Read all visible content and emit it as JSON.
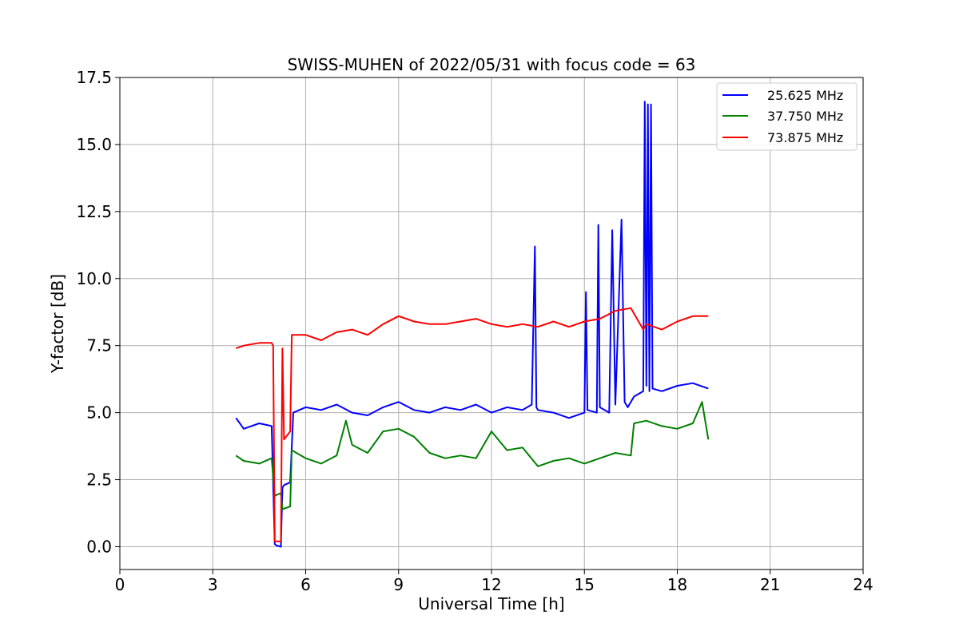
{
  "chart_data": {
    "type": "line",
    "title": "SWISS-MUHEN of 2022/05/31 with focus code = 63",
    "xlabel": "Universal Time [h]",
    "ylabel": "Y-factor [dB]",
    "xlim": [
      0,
      24
    ],
    "ylim": [
      -0.85,
      17.5
    ],
    "xticks": [
      0,
      3,
      6,
      9,
      12,
      15,
      18,
      21,
      24
    ],
    "xtick_labels": [
      "0",
      "3",
      "6",
      "9",
      "12",
      "15",
      "18",
      "21",
      "24"
    ],
    "yticks": [
      0.0,
      2.5,
      5.0,
      7.5,
      10.0,
      12.5,
      15.0,
      17.5
    ],
    "ytick_labels": [
      "0.0",
      "2.5",
      "5.0",
      "7.5",
      "10.0",
      "12.5",
      "15.0",
      "17.5"
    ],
    "grid": true,
    "legend_position": "top-right",
    "series": [
      {
        "name": "25.625 MHz",
        "color": "#0000ff",
        "x": [
          3.75,
          4.0,
          4.5,
          4.9,
          5.0,
          5.05,
          5.2,
          5.25,
          5.3,
          5.5,
          5.6,
          6.0,
          6.5,
          7.0,
          7.5,
          8.0,
          8.5,
          9.0,
          9.5,
          10.0,
          10.5,
          11.0,
          11.5,
          12.0,
          12.5,
          13.0,
          13.3,
          13.4,
          13.45,
          13.5,
          14.0,
          14.5,
          15.0,
          15.05,
          15.1,
          15.4,
          15.45,
          15.5,
          15.8,
          15.9,
          16.0,
          16.2,
          16.3,
          16.4,
          16.6,
          16.9,
          16.95,
          17.0,
          17.05,
          17.1,
          17.15,
          17.2,
          17.5,
          18.0,
          18.5,
          19.0
        ],
        "y": [
          4.8,
          4.4,
          4.6,
          4.5,
          0.1,
          0.05,
          0.0,
          2.2,
          2.3,
          2.4,
          5.0,
          5.2,
          5.1,
          5.3,
          5.0,
          4.9,
          5.2,
          5.4,
          5.1,
          5.0,
          5.2,
          5.1,
          5.3,
          5.0,
          5.2,
          5.1,
          5.3,
          11.2,
          5.2,
          5.1,
          5.0,
          4.8,
          5.0,
          9.5,
          5.1,
          5.0,
          12.0,
          5.2,
          5.0,
          11.8,
          5.3,
          12.2,
          5.4,
          5.2,
          5.6,
          5.8,
          16.6,
          6.0,
          16.5,
          5.8,
          16.5,
          5.9,
          5.8,
          6.0,
          6.1,
          5.9
        ]
      },
      {
        "name": "37.750 MHz",
        "color": "#008000",
        "x": [
          3.75,
          4.0,
          4.5,
          4.9,
          5.0,
          5.2,
          5.25,
          5.5,
          5.55,
          6.0,
          6.5,
          7.0,
          7.3,
          7.5,
          8.0,
          8.5,
          9.0,
          9.5,
          10.0,
          10.5,
          11.0,
          11.5,
          12.0,
          12.5,
          13.0,
          13.5,
          14.0,
          14.5,
          15.0,
          15.5,
          16.0,
          16.5,
          16.6,
          17.0,
          17.5,
          18.0,
          18.5,
          18.8,
          19.0
        ],
        "y": [
          3.4,
          3.2,
          3.1,
          3.3,
          1.9,
          2.0,
          1.4,
          1.5,
          3.6,
          3.3,
          3.1,
          3.4,
          4.7,
          3.8,
          3.5,
          4.3,
          4.4,
          4.1,
          3.5,
          3.3,
          3.4,
          3.3,
          4.3,
          3.6,
          3.7,
          3.0,
          3.2,
          3.3,
          3.1,
          3.3,
          3.5,
          3.4,
          4.6,
          4.7,
          4.5,
          4.4,
          4.6,
          5.4,
          4.0
        ]
      },
      {
        "name": "73.875 MHz",
        "color": "#ff0000",
        "x": [
          3.75,
          4.0,
          4.5,
          4.9,
          4.95,
          5.0,
          5.2,
          5.25,
          5.3,
          5.5,
          5.55,
          6.0,
          6.5,
          7.0,
          7.5,
          8.0,
          8.5,
          9.0,
          9.5,
          10.0,
          10.5,
          11.0,
          11.5,
          12.0,
          12.5,
          13.0,
          13.5,
          14.0,
          14.5,
          15.0,
          15.5,
          16.0,
          16.5,
          16.9,
          17.0,
          17.5,
          18.0,
          18.5,
          19.0
        ],
        "y": [
          7.4,
          7.5,
          7.6,
          7.6,
          7.5,
          0.2,
          0.2,
          7.4,
          4.0,
          4.3,
          7.9,
          7.9,
          7.7,
          8.0,
          8.1,
          7.9,
          8.3,
          8.6,
          8.4,
          8.3,
          8.3,
          8.4,
          8.5,
          8.3,
          8.2,
          8.3,
          8.2,
          8.4,
          8.2,
          8.4,
          8.5,
          8.8,
          8.9,
          8.1,
          8.3,
          8.1,
          8.4,
          8.6,
          8.6
        ]
      }
    ]
  }
}
